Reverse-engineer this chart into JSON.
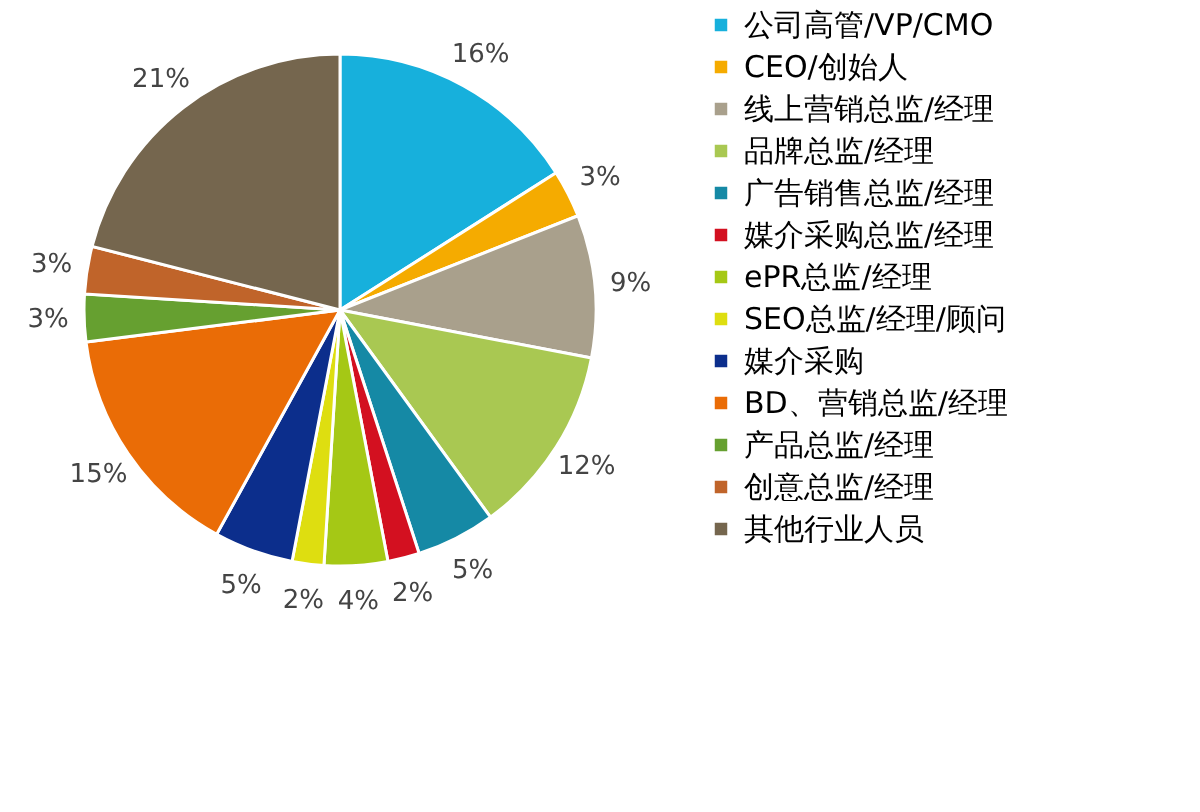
{
  "chart_data": {
    "type": "pie",
    "categories": [
      "公司高管/VP/CMO",
      "CEO/创始人",
      "线上营销总监/经理",
      "品牌总监/经理",
      "广告销售总监/经理",
      "媒介采购总监/经理",
      "ePR总监/经理",
      "SEO总监/经理/顾问",
      "媒介采购",
      "BD、营销总监/经理",
      "产品总监/经理",
      "创意总监/经理",
      "其他行业人员"
    ],
    "values": [
      16,
      3,
      9,
      12,
      5,
      2,
      4,
      2,
      5,
      15,
      3,
      3,
      21
    ],
    "value_labels": [
      "16%",
      "3%",
      "9%",
      "12%",
      "5%",
      "2%",
      "4%",
      "2%",
      "5%",
      "15%",
      "3%",
      "3%",
      "21%"
    ],
    "colors": [
      "#17b0dc",
      "#f5ab00",
      "#a9a08c",
      "#a9c852",
      "#1589a5",
      "#d31020",
      "#a5c815",
      "#dede10",
      "#0c2e8c",
      "#ea6c06",
      "#66a030",
      "#c0642a",
      "#75664e"
    ],
    "legend": "right"
  }
}
